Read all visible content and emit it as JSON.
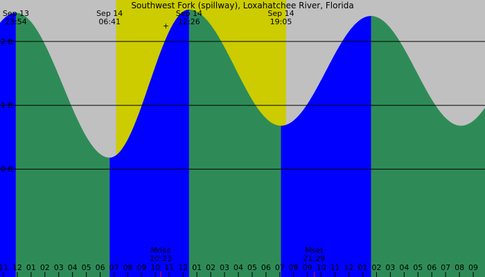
{
  "chart_data": {
    "type": "area",
    "title": "Southwest Fork (spillway), Loxahatchee River, Florida",
    "time_start_hour": -1.25,
    "time_end_hour": 33.85,
    "ylim": [
      -1.69,
      2.65
    ],
    "y_ticks": [
      {
        "value": 0,
        "label": "0 ft"
      },
      {
        "value": 1,
        "label": "1 ft"
      },
      {
        "value": 2,
        "label": "2 ft"
      }
    ],
    "extrema": [
      {
        "hour": -0.1,
        "height": 2.45,
        "type": "high",
        "date": "Sep 13",
        "time": "23:54",
        "show_label": true
      },
      {
        "hour": 6.683,
        "height": 0.18,
        "type": "low",
        "date": "Sep 14",
        "time": "06:41",
        "show_label": true
      },
      {
        "hour": 12.433,
        "height": 2.5,
        "type": "high",
        "date": "Sep 14",
        "time": "12:26",
        "show_label": true
      },
      {
        "hour": 19.083,
        "height": 0.68,
        "type": "low",
        "date": "Sep 14",
        "time": "19:05",
        "show_label": true
      },
      {
        "hour": 25.6,
        "height": 2.4,
        "type": "high",
        "show_label": false
      }
    ],
    "daylight": [
      {
        "start_hour": 7.15,
        "end_hour": 19.45
      }
    ],
    "rising_color": "#0000ff",
    "falling_color": "#2e8b57",
    "day_color": "#cccc00",
    "night_color": "#c0c0c0",
    "hour_ticks": [
      {
        "hour": -1,
        "label": "11"
      },
      {
        "hour": 0,
        "label": "12"
      },
      {
        "hour": 1,
        "label": "01"
      },
      {
        "hour": 2,
        "label": "02"
      },
      {
        "hour": 3,
        "label": "03"
      },
      {
        "hour": 4,
        "label": "04"
      },
      {
        "hour": 5,
        "label": "05"
      },
      {
        "hour": 6,
        "label": "06"
      },
      {
        "hour": 7,
        "label": "07"
      },
      {
        "hour": 8,
        "label": "08"
      },
      {
        "hour": 9,
        "label": "09"
      },
      {
        "hour": 10,
        "label": "10"
      },
      {
        "hour": 11,
        "label": "11"
      },
      {
        "hour": 12,
        "label": "12"
      },
      {
        "hour": 13,
        "label": "01"
      },
      {
        "hour": 14,
        "label": "02"
      },
      {
        "hour": 15,
        "label": "03"
      },
      {
        "hour": 16,
        "label": "04"
      },
      {
        "hour": 17,
        "label": "05"
      },
      {
        "hour": 18,
        "label": "06"
      },
      {
        "hour": 19,
        "label": "07"
      },
      {
        "hour": 20,
        "label": "08"
      },
      {
        "hour": 21,
        "label": "09"
      },
      {
        "hour": 22,
        "label": "10"
      },
      {
        "hour": 23,
        "label": "11"
      },
      {
        "hour": 24,
        "label": "12"
      },
      {
        "hour": 25,
        "label": "01"
      },
      {
        "hour": 26,
        "label": "02"
      },
      {
        "hour": 27,
        "label": "03"
      },
      {
        "hour": 28,
        "label": "04"
      },
      {
        "hour": 29,
        "label": "05"
      },
      {
        "hour": 30,
        "label": "06"
      },
      {
        "hour": 31,
        "label": "07"
      },
      {
        "hour": 32,
        "label": "08"
      },
      {
        "hour": 33,
        "label": "09"
      }
    ],
    "moon_events": [
      {
        "hour": 10.383,
        "label": "Mrise",
        "time": "10:23"
      },
      {
        "hour": 21.483,
        "label": "Mset",
        "time": "21:29"
      }
    ],
    "current_marker": {
      "hour": 10.75,
      "height": 2.25,
      "symbol": "+"
    }
  }
}
